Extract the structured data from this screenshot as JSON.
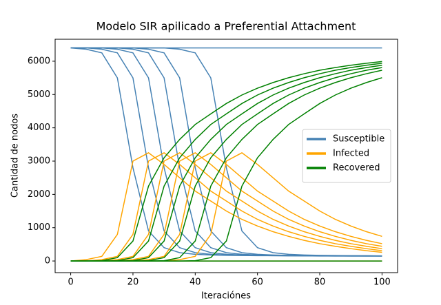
{
  "chart_data": {
    "type": "line-ensemble",
    "title": "Modelo SIR apilicado a Preferential Attachment",
    "x_label": "Iteraciónes",
    "y_label": "Cantidad de nodos",
    "x": [
      0,
      5,
      10,
      15,
      20,
      25,
      30,
      35,
      40,
      45,
      50,
      55,
      60,
      65,
      70,
      75,
      80,
      85,
      90,
      95,
      100
    ],
    "xlim": [
      -5,
      105
    ],
    "ylim": [
      -350,
      6660
    ],
    "xticks": [
      0,
      20,
      40,
      60,
      80,
      100
    ],
    "yticks": [
      0,
      1000,
      2000,
      3000,
      4000,
      5000,
      6000
    ],
    "legend": "center right",
    "series": [
      {
        "name": "Susceptible",
        "color": "#4682b4",
        "runs": [
          [
            6400,
            6360,
            6250,
            5500,
            2800,
            900,
            400,
            250,
            200,
            180,
            170,
            165,
            160,
            160,
            155,
            155,
            150,
            150,
            150,
            150,
            150
          ],
          [
            6400,
            6400,
            6360,
            6250,
            5500,
            2800,
            900,
            400,
            250,
            200,
            180,
            170,
            165,
            160,
            160,
            155,
            155,
            150,
            150,
            150,
            150
          ],
          [
            6400,
            6400,
            6400,
            6360,
            6250,
            5500,
            2800,
            900,
            400,
            250,
            200,
            180,
            170,
            165,
            160,
            160,
            155,
            155,
            150,
            150,
            150
          ],
          [
            6400,
            6400,
            6400,
            6400,
            6360,
            6250,
            5500,
            2800,
            900,
            400,
            250,
            200,
            180,
            170,
            165,
            160,
            160,
            155,
            155,
            150,
            150
          ],
          [
            6400,
            6400,
            6400,
            6400,
            6400,
            6360,
            6250,
            5500,
            2800,
            900,
            400,
            250,
            200,
            180,
            170,
            165,
            160,
            160,
            155,
            155,
            150
          ],
          [
            6400,
            6400,
            6400,
            6400,
            6400,
            6400,
            6400,
            6360,
            6250,
            5500,
            2800,
            900,
            400,
            250,
            200,
            180,
            170,
            165,
            160,
            160,
            155
          ],
          [
            6400,
            6400,
            6400,
            6400,
            6400,
            6400,
            6400,
            6400,
            6400,
            6400,
            6400,
            6400,
            6400,
            6400,
            6400,
            6400,
            6400,
            6400,
            6400,
            6400,
            6400
          ]
        ]
      },
      {
        "name": "Infected",
        "color": "#ffa500",
        "runs": [
          [
            0,
            40,
            140,
            800,
            3000,
            3250,
            2900,
            2500,
            2100,
            1800,
            1500,
            1250,
            1050,
            880,
            740,
            620,
            520,
            440,
            370,
            310,
            260
          ],
          [
            0,
            0,
            40,
            140,
            800,
            3000,
            3250,
            2900,
            2500,
            2100,
            1800,
            1500,
            1250,
            1050,
            880,
            740,
            620,
            520,
            440,
            370,
            310
          ],
          [
            0,
            0,
            0,
            40,
            140,
            800,
            3000,
            3250,
            2900,
            2500,
            2100,
            1800,
            1500,
            1250,
            1050,
            880,
            740,
            620,
            520,
            440,
            370
          ],
          [
            0,
            0,
            0,
            0,
            40,
            140,
            800,
            3000,
            3250,
            2900,
            2500,
            2100,
            1800,
            1500,
            1250,
            1050,
            880,
            740,
            620,
            520,
            440
          ],
          [
            0,
            0,
            0,
            0,
            0,
            40,
            140,
            800,
            3000,
            3250,
            2900,
            2500,
            2100,
            1800,
            1500,
            1250,
            1050,
            880,
            740,
            620,
            520
          ],
          [
            0,
            0,
            0,
            0,
            0,
            0,
            0,
            40,
            140,
            800,
            3000,
            3250,
            2900,
            2500,
            2100,
            1800,
            1500,
            1250,
            1050,
            880,
            740
          ],
          [
            0,
            0,
            0,
            0,
            0,
            0,
            0,
            0,
            0,
            0,
            0,
            0,
            0,
            0,
            0,
            0,
            0,
            0,
            0,
            0,
            0
          ]
        ]
      },
      {
        "name": "Recovered",
        "color": "#008000",
        "runs": [
          [
            0,
            0,
            10,
            100,
            600,
            2250,
            3100,
            3650,
            4100,
            4420,
            4730,
            4985,
            5190,
            5360,
            5505,
            5625,
            5730,
            5810,
            5880,
            5940,
            5990
          ],
          [
            0,
            0,
            0,
            10,
            100,
            600,
            2250,
            3100,
            3650,
            4100,
            4420,
            4730,
            4985,
            5190,
            5360,
            5505,
            5625,
            5730,
            5810,
            5880,
            5940
          ],
          [
            0,
            0,
            0,
            0,
            10,
            100,
            600,
            2250,
            3100,
            3650,
            4100,
            4420,
            4730,
            4985,
            5190,
            5360,
            5505,
            5625,
            5730,
            5810,
            5880
          ],
          [
            0,
            0,
            0,
            0,
            0,
            10,
            100,
            600,
            2250,
            3100,
            3650,
            4100,
            4420,
            4730,
            4985,
            5190,
            5360,
            5505,
            5625,
            5730,
            5810
          ],
          [
            0,
            0,
            0,
            0,
            0,
            0,
            10,
            100,
            600,
            2250,
            3100,
            3650,
            4100,
            4420,
            4730,
            4985,
            5190,
            5360,
            5505,
            5625,
            5730
          ],
          [
            0,
            0,
            0,
            0,
            0,
            0,
            0,
            0,
            10,
            100,
            600,
            2250,
            3100,
            3650,
            4100,
            4420,
            4730,
            4985,
            5190,
            5360,
            5505
          ],
          [
            0,
            0,
            0,
            0,
            0,
            0,
            0,
            0,
            0,
            0,
            0,
            0,
            0,
            0,
            0,
            0,
            0,
            0,
            0,
            0,
            0
          ]
        ]
      }
    ]
  }
}
